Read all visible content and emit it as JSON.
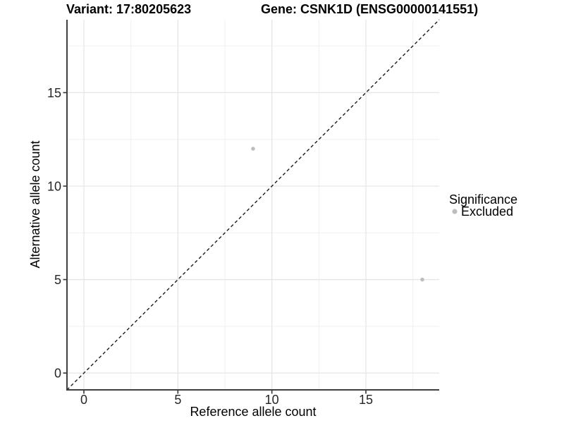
{
  "page": {
    "background_color": "#ffffff"
  },
  "chart_data": {
    "type": "scatter",
    "title_left": "Variant: 17:80205623",
    "title_right": "Gene: CSNK1D (ENSG00000141551)",
    "xlabel": "Reference allele count",
    "ylabel": "Alternative allele count",
    "xlim": [
      -0.9,
      18.9
    ],
    "ylim": [
      -0.9,
      18.9
    ],
    "x_major_ticks": [
      0,
      5,
      10,
      15
    ],
    "x_minor_ticks": [
      2.5,
      7.5,
      12.5,
      17.5
    ],
    "y_major_ticks": [
      0,
      5,
      10,
      15
    ],
    "y_minor_ticks": [
      2.5,
      7.5,
      12.5,
      17.5
    ],
    "grid": true,
    "series": [
      {
        "name": "Excluded",
        "color": "#bebebe",
        "points": [
          {
            "x": 9,
            "y": 12
          },
          {
            "x": 18,
            "y": 5
          }
        ]
      }
    ],
    "identity_line": {
      "style": "dashed",
      "slope": 1,
      "intercept": 0
    },
    "legend": {
      "title": "Significance",
      "position": "right",
      "items": [
        {
          "label": "Excluded",
          "color": "#bebebe"
        }
      ]
    },
    "colors": {
      "grid_major": "#e6e6e6",
      "grid_minor": "#f0f0f0",
      "axis_line": "#404040",
      "tick_mark": "#333333",
      "tick_label": "#262626",
      "diagonal": "#1a1a1a",
      "point": "#bebebe"
    }
  }
}
